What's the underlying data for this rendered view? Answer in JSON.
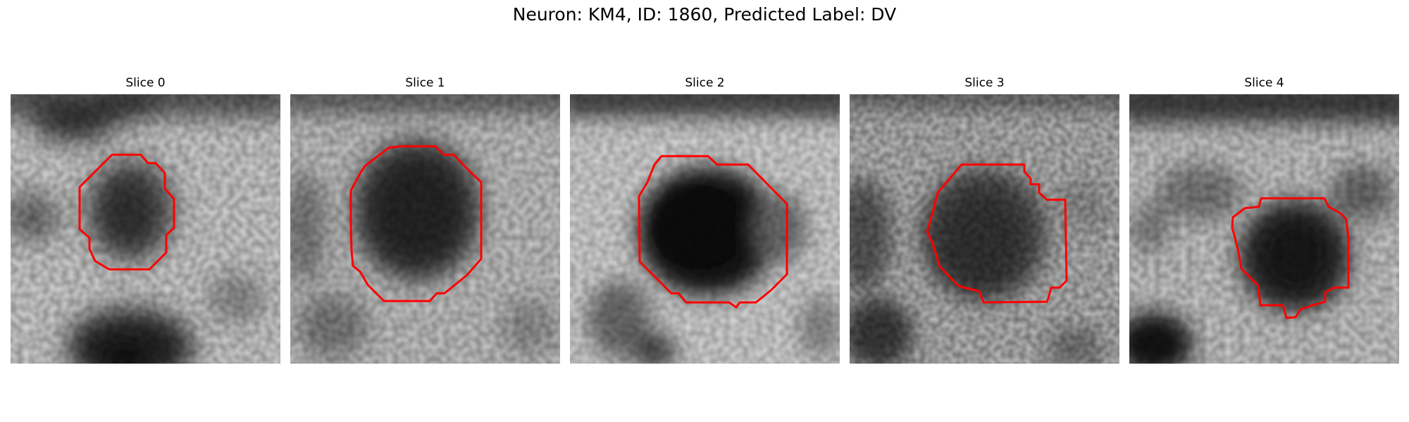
{
  "figure": {
    "title": "Neuron: KM4, ID: 1860, Predicted Label: DV",
    "contour_color": "#ff0000",
    "panels": [
      {
        "title": "Slice 0"
      },
      {
        "title": "Slice 1"
      },
      {
        "title": "Slice 2"
      },
      {
        "title": "Slice 3"
      },
      {
        "title": "Slice 4"
      }
    ]
  }
}
